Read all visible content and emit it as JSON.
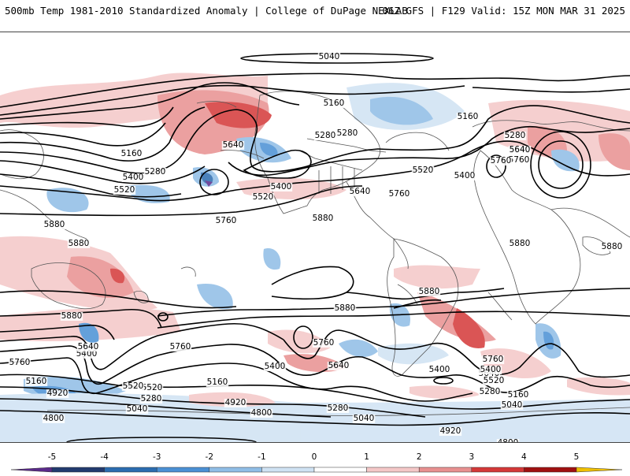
{
  "header": {
    "title": "500mb Temp 1981-2010 Standardized Anomaly | College of DuPage NEXLAB",
    "run_info": "06Z GFS | F129 Valid: 15Z MON MAR 31 2025"
  },
  "colorbar": {
    "ticks": [
      "-5",
      "-4",
      "-3",
      "-2",
      "-1",
      "0",
      "1",
      "2",
      "3",
      "4",
      "5"
    ],
    "colors": [
      "#5a2a8a",
      "#223a6e",
      "#2b6cb0",
      "#4a90d4",
      "#8fbde6",
      "#cfe2f3",
      "#ffffff",
      "#f4c7c7",
      "#e89090",
      "#d43838",
      "#a01010",
      "#6e0000",
      "#f0c000"
    ]
  },
  "contours": [
    {
      "label": "5040"
    },
    {
      "label": "5160"
    },
    {
      "label": "5160"
    },
    {
      "label": "5280"
    },
    {
      "label": "5280"
    },
    {
      "label": "5640"
    },
    {
      "label": "5160"
    },
    {
      "label": "5400"
    },
    {
      "label": "5280"
    },
    {
      "label": "5520"
    },
    {
      "label": "5640"
    },
    {
      "label": "5760"
    },
    {
      "label": "5760"
    },
    {
      "label": "5400"
    },
    {
      "label": "5520"
    },
    {
      "label": "5640"
    },
    {
      "label": "5760"
    },
    {
      "label": "5520"
    },
    {
      "label": "5400"
    },
    {
      "label": "5280"
    },
    {
      "label": "5640"
    },
    {
      "label": "5760"
    },
    {
      "label": "5880"
    },
    {
      "label": "5880"
    },
    {
      "label": "5880"
    },
    {
      "label": "5880"
    },
    {
      "label": "5880"
    },
    {
      "label": "5880"
    },
    {
      "label": "5880"
    },
    {
      "label": "5760"
    },
    {
      "label": "5760"
    },
    {
      "label": "5640"
    },
    {
      "label": "5400"
    },
    {
      "label": "5760"
    },
    {
      "label": "5640"
    },
    {
      "label": "5400"
    },
    {
      "label": "5520"
    },
    {
      "label": "5160"
    },
    {
      "label": "5280"
    },
    {
      "label": "5040"
    },
    {
      "label": "4920"
    },
    {
      "label": "4920"
    },
    {
      "label": "4800"
    },
    {
      "label": "4800"
    },
    {
      "label": "5400"
    },
    {
      "label": "5640"
    },
    {
      "label": "5160"
    },
    {
      "label": "5520"
    },
    {
      "label": "5280"
    },
    {
      "label": "5040"
    },
    {
      "label": "4920"
    },
    {
      "label": "4800"
    },
    {
      "label": "5760"
    },
    {
      "label": "5400"
    },
    {
      "label": "5640"
    },
    {
      "label": "5520"
    },
    {
      "label": "5280"
    },
    {
      "label": "5160"
    },
    {
      "label": "5040"
    },
    {
      "label": "5880"
    }
  ]
}
